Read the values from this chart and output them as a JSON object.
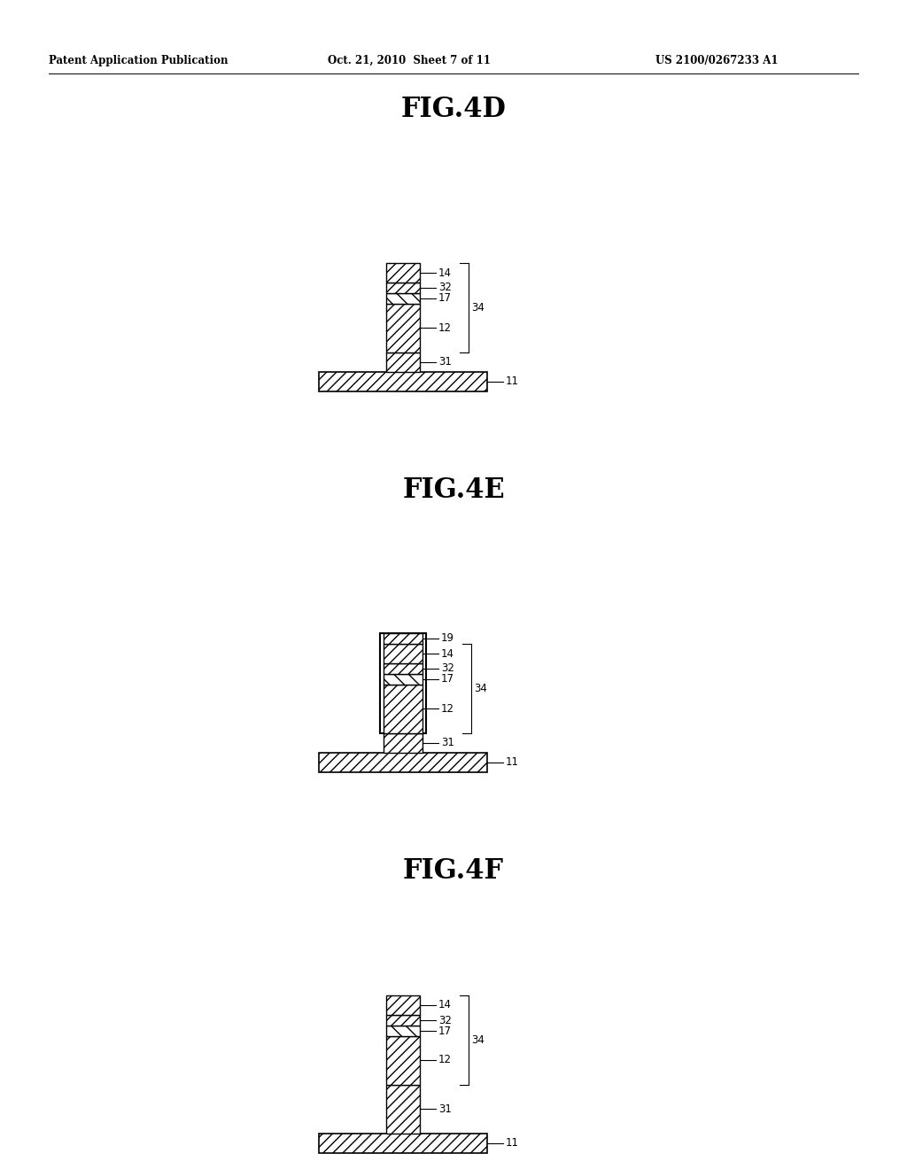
{
  "bg_color": "#ffffff",
  "header_left": "Patent Application Publication",
  "header_mid": "Oct. 21, 2010  Sheet 7 of 11",
  "header_right": "US 2100/0267233 A1",
  "fig_labels": [
    "FIG.4D",
    "FIG.4E",
    "FIG.4F"
  ],
  "fig_label_fontsize": 22,
  "header_fontsize": 8.5,
  "annotation_fontsize": 8.5,
  "layer_lw": 1.0,
  "substrate_lw": 1.2
}
